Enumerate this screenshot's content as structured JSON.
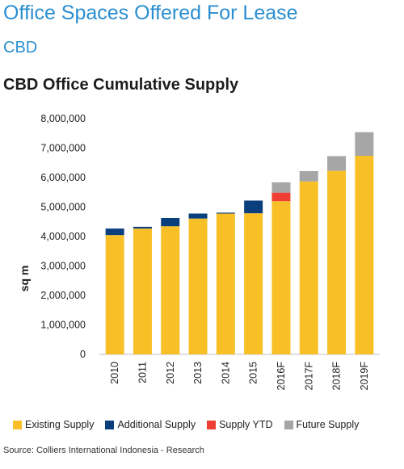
{
  "page_title": "Office Spaces Offered For Lease",
  "section_title": "CBD",
  "chart_data": {
    "type": "bar",
    "stacked": true,
    "title": "CBD Office Cumulative Supply",
    "ylabel": "sq m",
    "xlabel": "",
    "ylim": [
      0,
      8000000
    ],
    "y_ticks": [
      "0",
      "1,000,000",
      "2,000,000",
      "3,000,000",
      "4,000,000",
      "5,000,000",
      "6,000,000",
      "7,000,000",
      "8,000,000"
    ],
    "categories": [
      "2010",
      "2011",
      "2012",
      "2013",
      "2014",
      "2015",
      "2016F",
      "2017F",
      "2018F",
      "2019F"
    ],
    "series": [
      {
        "name": "Existing Supply",
        "color": "#f8bf27",
        "values": [
          4050000,
          4270000,
          4350000,
          4610000,
          4780000,
          4790000,
          5200000,
          5870000,
          6230000,
          6740000
        ]
      },
      {
        "name": "Additional Supply",
        "color": "#0a3f7d",
        "values": [
          220000,
          60000,
          280000,
          170000,
          30000,
          430000,
          0,
          0,
          0,
          0
        ]
      },
      {
        "name": "Supply YTD",
        "color": "#ef3e36",
        "values": [
          0,
          0,
          0,
          0,
          0,
          0,
          290000,
          0,
          0,
          0
        ]
      },
      {
        "name": "Future Supply",
        "color": "#a6a6a6",
        "values": [
          0,
          0,
          0,
          0,
          0,
          0,
          350000,
          350000,
          500000,
          800000
        ]
      }
    ],
    "grid": false,
    "legend_position": "bottom"
  },
  "source": "Source: Colliers International Indonesia - Research"
}
